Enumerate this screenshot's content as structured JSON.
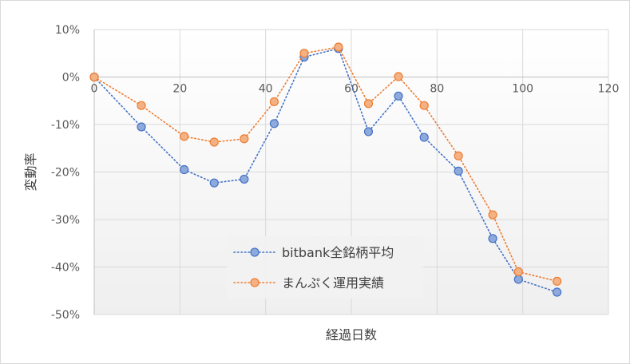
{
  "chart_data": {
    "type": "line",
    "title": "",
    "xlabel": "経過日数",
    "ylabel": "変動率",
    "xlim": [
      0,
      120
    ],
    "ylim": [
      -50,
      10
    ],
    "x_ticks": [
      0,
      20,
      40,
      60,
      80,
      100,
      120
    ],
    "y_ticks": [
      10,
      0,
      -10,
      -20,
      -30,
      -40,
      -50
    ],
    "x_tick_labels": [
      "0",
      "20",
      "40",
      "60",
      "80",
      "100",
      "120"
    ],
    "y_tick_labels": [
      "10%",
      "0%",
      "-10%",
      "-20%",
      "-30%",
      "-40%",
      "-50%"
    ],
    "grid": true,
    "legend_position": "bottom-center",
    "series": [
      {
        "name": "bitbank全銘柄平均",
        "color": "#4472c4",
        "fill": "#8ea9db",
        "x": [
          0,
          11,
          21,
          28,
          35,
          42,
          49,
          57,
          64,
          71,
          77,
          85,
          93,
          99,
          108
        ],
        "y": [
          0,
          -10.5,
          -19.5,
          -22.3,
          -21.5,
          -9.8,
          4.2,
          6.0,
          -11.5,
          -4.0,
          -12.7,
          -19.8,
          -34.0,
          -42.6,
          -45.3
        ]
      },
      {
        "name": "まんぷく運用実績",
        "color": "#ed7d31",
        "fill": "#f4b183",
        "x": [
          0,
          11,
          21,
          28,
          35,
          42,
          49,
          57,
          64,
          71,
          77,
          85,
          93,
          99,
          108
        ],
        "y": [
          0,
          -6.0,
          -12.5,
          -13.7,
          -13.0,
          -5.2,
          5.0,
          6.3,
          -5.6,
          0.1,
          -6.0,
          -16.6,
          -29.0,
          -41.0,
          -43.0
        ]
      }
    ]
  }
}
